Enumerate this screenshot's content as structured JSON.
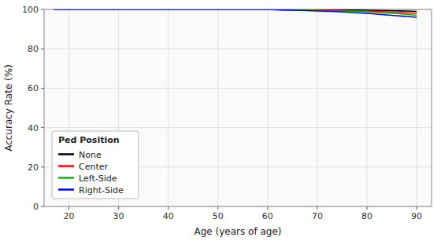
{
  "chart_data": {
    "type": "line",
    "xlabel": "Age (years of age)",
    "ylabel": "Accuracy Rate (%)",
    "legend_title": "Ped Position",
    "x": [
      17,
      20,
      25,
      30,
      35,
      40,
      45,
      47,
      50,
      52,
      55,
      58,
      60,
      63,
      65,
      68,
      70,
      73,
      75,
      78,
      80,
      82,
      84,
      86,
      88,
      90
    ],
    "series": [
      {
        "name": "None",
        "color": "#000000",
        "values": [
          100.0,
          100.0,
          100.0,
          100.0,
          100.0,
          100.0,
          100.0,
          100.0,
          100.0,
          100.0,
          100.0,
          100.0,
          100.0,
          99.9,
          99.9,
          99.9,
          99.8,
          99.8,
          99.7,
          99.7,
          99.6,
          99.5,
          99.4,
          99.3,
          99.2,
          99.0
        ]
      },
      {
        "name": "Center",
        "color": "#ff0000",
        "values": [
          100.0,
          100.0,
          100.0,
          100.0,
          100.0,
          100.0,
          100.0,
          100.0,
          100.0,
          100.0,
          100.0,
          100.0,
          100.0,
          99.8,
          99.8,
          99.7,
          99.6,
          99.5,
          99.4,
          99.3,
          99.2,
          99.0,
          98.8,
          98.6,
          98.3,
          98.0
        ]
      },
      {
        "name": "Left-Side",
        "color": "#00bb00",
        "values": [
          100.0,
          100.0,
          100.0,
          100.0,
          100.0,
          100.0,
          100.0,
          100.0,
          100.0,
          100.0,
          100.0,
          100.0,
          100.0,
          99.8,
          99.7,
          99.6,
          99.5,
          99.3,
          99.2,
          99.0,
          98.8,
          98.5,
          98.2,
          97.9,
          97.5,
          97.0
        ]
      },
      {
        "name": "Right-Side",
        "color": "#0000ff",
        "values": [
          100.0,
          100.0,
          100.0,
          100.0,
          100.0,
          100.0,
          100.0,
          100.0,
          100.0,
          100.0,
          100.0,
          100.0,
          100.0,
          99.7,
          99.6,
          99.4,
          99.2,
          99.0,
          98.7,
          98.3,
          98.0,
          97.6,
          97.2,
          96.8,
          96.4,
          96.0
        ]
      }
    ],
    "xlim": [
      15,
      93
    ],
    "ylim": [
      0,
      100
    ],
    "xticks": [
      20,
      30,
      40,
      50,
      60,
      70,
      80,
      90
    ],
    "yticks": [
      0,
      20,
      40,
      60,
      80,
      100
    ],
    "grid": true,
    "legend": "lower left"
  }
}
